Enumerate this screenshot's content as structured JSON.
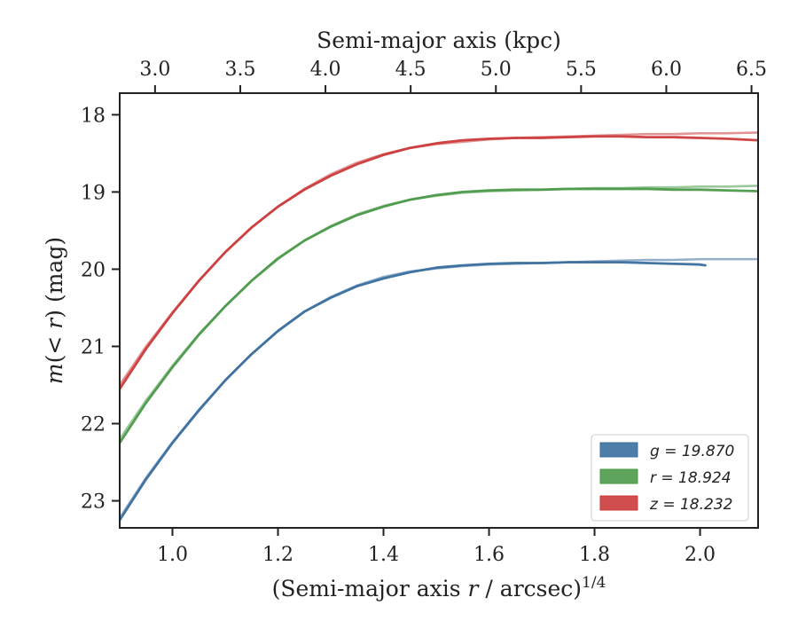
{
  "chart_data": {
    "type": "line",
    "xlabel": "(Semi-major axis r / arcsec)",
    "xlabel_sup": "1/4",
    "ylabel": "m(< r) (mag)",
    "top_xlabel": "Semi-major axis (kpc)",
    "xlim": [
      0.9,
      2.11
    ],
    "ylim": [
      23.35,
      17.72
    ],
    "y_inverted": true,
    "x_ticks": [
      1.0,
      1.2,
      1.4,
      1.6,
      1.8,
      2.0
    ],
    "x_tick_labels": [
      "1.0",
      "1.2",
      "1.4",
      "1.6",
      "1.8",
      "2.0"
    ],
    "y_ticks": [
      18,
      19,
      20,
      21,
      22,
      23
    ],
    "y_tick_labels": [
      "18",
      "19",
      "20",
      "21",
      "22",
      "23"
    ],
    "top_x_ticks": [
      3.0,
      3.5,
      4.0,
      4.5,
      5.0,
      5.5,
      6.0,
      6.5
    ],
    "top_x_tick_labels": [
      "3.0",
      "3.5",
      "4.0",
      "4.5",
      "5.0",
      "5.5",
      "6.0",
      "6.5"
    ],
    "top_x_positions": [
      0.967,
      1.1285,
      1.29,
      1.4515,
      1.613,
      1.7745,
      1.936,
      2.0975
    ],
    "grid": false,
    "legend_position": "lower-right",
    "series": [
      {
        "name": "g = 19.870",
        "color": "#3a6f9e",
        "x": [
          0.9,
          0.95,
          1.0,
          1.05,
          1.1,
          1.15,
          1.2,
          1.25,
          1.3,
          1.35,
          1.4,
          1.45,
          1.5,
          1.55,
          1.6,
          1.65,
          1.7,
          1.75,
          1.8,
          1.85,
          1.9,
          1.95,
          2.0,
          2.01
        ],
        "y": [
          23.25,
          22.72,
          22.25,
          21.83,
          21.44,
          21.1,
          20.8,
          20.55,
          20.37,
          20.22,
          20.12,
          20.04,
          19.98,
          19.95,
          19.93,
          19.92,
          19.92,
          19.91,
          19.91,
          19.91,
          19.92,
          19.93,
          19.94,
          19.95
        ],
        "model_x": [
          0.9,
          0.95,
          1.0,
          1.05,
          1.1,
          1.15,
          1.2,
          1.25,
          1.3,
          1.35,
          1.4,
          1.45,
          1.5,
          1.55,
          1.6,
          1.65,
          1.7,
          1.75,
          1.8,
          1.85,
          1.9,
          1.95,
          2.0,
          2.05,
          2.11
        ],
        "model_y": [
          23.22,
          22.7,
          22.24,
          21.82,
          21.44,
          21.1,
          20.8,
          20.55,
          20.36,
          20.21,
          20.1,
          20.03,
          19.99,
          19.96,
          19.94,
          19.93,
          19.92,
          19.91,
          19.9,
          19.89,
          19.88,
          19.88,
          19.87,
          19.87,
          19.87
        ]
      },
      {
        "name": "r = 18.924",
        "color": "#4c9a4a",
        "x": [
          0.9,
          0.95,
          1.0,
          1.05,
          1.1,
          1.15,
          1.2,
          1.25,
          1.3,
          1.35,
          1.4,
          1.45,
          1.5,
          1.55,
          1.6,
          1.65,
          1.7,
          1.75,
          1.8,
          1.85,
          1.9,
          1.95,
          2.0,
          2.05,
          2.11
        ],
        "y": [
          22.25,
          21.73,
          21.27,
          20.85,
          20.48,
          20.15,
          19.86,
          19.63,
          19.45,
          19.3,
          19.19,
          19.1,
          19.04,
          19.0,
          18.98,
          18.97,
          18.97,
          18.96,
          18.96,
          18.96,
          18.96,
          18.97,
          18.97,
          18.98,
          18.99
        ],
        "model_x": [
          0.9,
          0.95,
          1.0,
          1.05,
          1.1,
          1.15,
          1.2,
          1.25,
          1.3,
          1.35,
          1.4,
          1.45,
          1.5,
          1.55,
          1.6,
          1.65,
          1.7,
          1.75,
          1.8,
          1.85,
          1.9,
          1.95,
          2.0,
          2.05,
          2.11
        ],
        "model_y": [
          22.2,
          21.7,
          21.25,
          20.84,
          20.48,
          20.15,
          19.87,
          19.63,
          19.44,
          19.29,
          19.18,
          19.1,
          19.05,
          19.01,
          18.99,
          18.98,
          18.97,
          18.96,
          18.95,
          18.95,
          18.94,
          18.94,
          18.93,
          18.93,
          18.92
        ]
      },
      {
        "name": "z = 18.232",
        "color": "#cc3b3b",
        "x": [
          0.9,
          0.95,
          1.0,
          1.05,
          1.1,
          1.15,
          1.2,
          1.25,
          1.3,
          1.35,
          1.4,
          1.45,
          1.5,
          1.55,
          1.6,
          1.65,
          1.7,
          1.75,
          1.8,
          1.85,
          1.9,
          1.95,
          2.0,
          2.05,
          2.11
        ],
        "y": [
          21.55,
          21.03,
          20.57,
          20.15,
          19.78,
          19.46,
          19.19,
          18.97,
          18.79,
          18.64,
          18.52,
          18.43,
          18.37,
          18.33,
          18.31,
          18.3,
          18.3,
          18.29,
          18.28,
          18.28,
          18.29,
          18.29,
          18.3,
          18.31,
          18.33
        ],
        "model_x": [
          0.9,
          0.95,
          1.0,
          1.05,
          1.1,
          1.15,
          1.2,
          1.25,
          1.3,
          1.35,
          1.4,
          1.45,
          1.5,
          1.55,
          1.6,
          1.65,
          1.7,
          1.75,
          1.8,
          1.85,
          1.9,
          1.95,
          2.0,
          2.05,
          2.11
        ],
        "model_y": [
          21.5,
          21.0,
          20.56,
          20.15,
          19.78,
          19.46,
          19.19,
          18.96,
          18.77,
          18.62,
          18.51,
          18.43,
          18.38,
          18.35,
          18.32,
          18.3,
          18.29,
          18.28,
          18.27,
          18.26,
          18.25,
          18.25,
          18.24,
          18.24,
          18.23
        ]
      }
    ]
  }
}
